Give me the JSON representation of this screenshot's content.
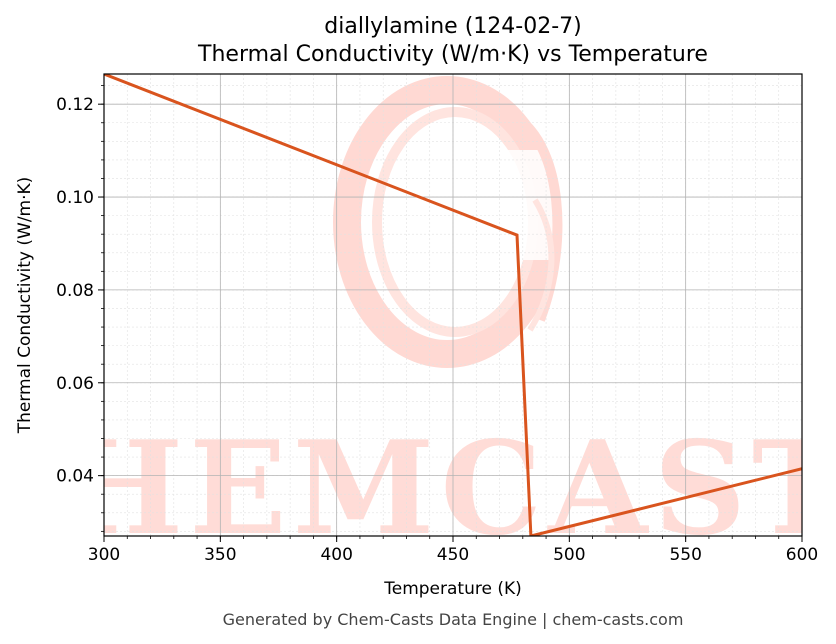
{
  "chart_data": {
    "type": "line",
    "title": "diallylamine (124-02-7)",
    "subtitle": "Thermal Conductivity (W/m·K) vs Temperature",
    "xlabel": "Temperature (K)",
    "ylabel": "Thermal Conductivity (W/m·K)",
    "xlim": [
      300,
      600
    ],
    "ylim": [
      0.027,
      0.1265
    ],
    "xticks": [
      300,
      350,
      400,
      450,
      500,
      550,
      600
    ],
    "yticks": [
      0.04,
      0.06,
      0.08,
      0.1,
      0.12
    ],
    "grid": true,
    "legend": "none",
    "series": [
      {
        "x": [
          300,
          477.5,
          483.5,
          600
        ],
        "y": [
          0.1265,
          0.0918,
          0.027,
          0.0415
        ],
        "color": "#d9541e"
      }
    ]
  },
  "watermark": {
    "text": "CHEMCASTS",
    "color": "#ffd9d3"
  },
  "footer": "Generated by Chem-Casts Data Engine | chem-casts.com"
}
